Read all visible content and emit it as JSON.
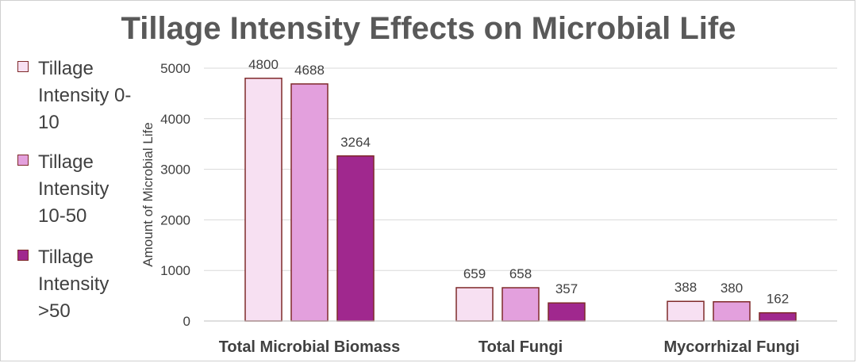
{
  "chart_data": {
    "type": "bar",
    "title": "Tillage Intensity Effects on Microbial Life",
    "xlabel": "",
    "ylabel": "Amount of Microbial Life",
    "categories": [
      "Total Microbial Biomass",
      "Total Fungi",
      "Mycorrhizal Fungi"
    ],
    "series": [
      {
        "name": "Tillage Intensity 0-10",
        "color": "#f7e0f2",
        "values": [
          4800,
          659,
          388
        ]
      },
      {
        "name": "Tillage Intensity 10-50",
        "color": "#e3a0dd",
        "values": [
          4688,
          658,
          380
        ]
      },
      {
        "name": "Tillage Intensity >50",
        "color": "#a0288e",
        "values": [
          3264,
          357,
          162
        ]
      }
    ],
    "ylim": [
      0,
      5000
    ],
    "yticks": [
      "0",
      "1000",
      "2000",
      "3000",
      "4000",
      "5000"
    ],
    "grid": true,
    "legend_position": "left",
    "bar_outline_color": "#7f2a2a"
  }
}
